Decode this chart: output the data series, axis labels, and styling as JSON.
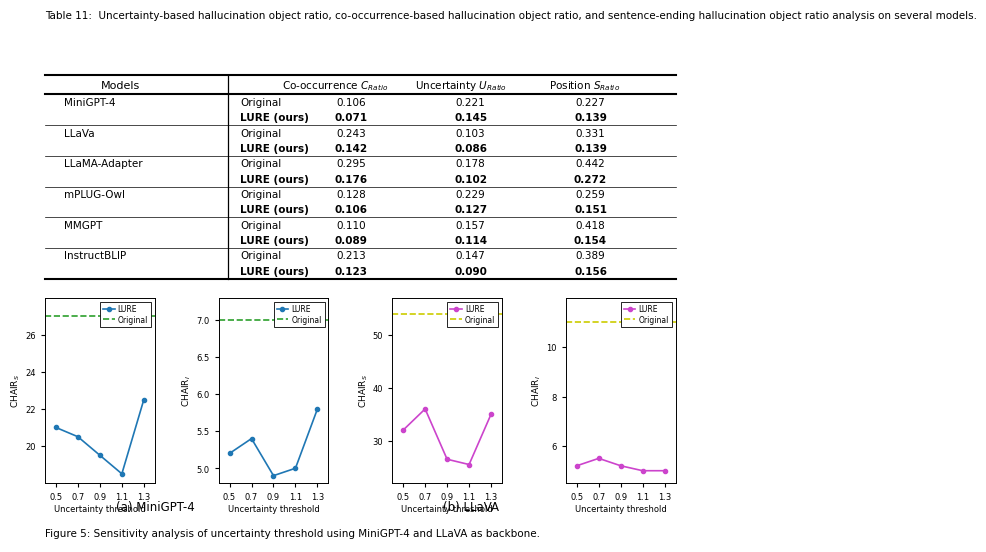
{
  "table_title": "Table 11:  Uncertainty-based hallucination object ratio, co-occurrence-based hallucination object ratio, and sentence-ending hallucination object ratio analysis on several models.",
  "table_rows": [
    [
      "MiniGPT-4",
      "Original",
      "0.106",
      "0.221",
      "0.227"
    ],
    [
      "",
      "LURE (ours)",
      "0.071",
      "0.145",
      "0.139"
    ],
    [
      "LLaVa",
      "Original",
      "0.243",
      "0.103",
      "0.331"
    ],
    [
      "",
      "LURE (ours)",
      "0.142",
      "0.086",
      "0.139"
    ],
    [
      "LLaMA-Adapter",
      "Original",
      "0.295",
      "0.178",
      "0.442"
    ],
    [
      "",
      "LURE (ours)",
      "0.176",
      "0.102",
      "0.272"
    ],
    [
      "mPLUG-Owl",
      "Original",
      "0.128",
      "0.229",
      "0.259"
    ],
    [
      "",
      "LURE (ours)",
      "0.106",
      "0.127",
      "0.151"
    ],
    [
      "MMGPT",
      "Original",
      "0.110",
      "0.157",
      "0.418"
    ],
    [
      "",
      "LURE (ours)",
      "0.089",
      "0.114",
      "0.154"
    ],
    [
      "InstructBLIP",
      "Original",
      "0.213",
      "0.147",
      "0.389"
    ],
    [
      "",
      "LURE (ours)",
      "0.123",
      "0.090",
      "0.156"
    ]
  ],
  "x_vals": [
    0.5,
    0.7,
    0.9,
    1.1,
    1.3
  ],
  "minigpt4_chairs": [
    21.0,
    20.5,
    19.5,
    18.5,
    22.5
  ],
  "minigpt4_chairs_orig": 27.0,
  "minigpt4_chairi": [
    5.2,
    5.4,
    4.9,
    5.0,
    5.8
  ],
  "minigpt4_chairi_orig": 7.0,
  "llava_chairs": [
    32.0,
    36.0,
    26.5,
    25.5,
    35.0
  ],
  "llava_chairs_orig": 54.0,
  "llava_chairi": [
    5.2,
    5.5,
    5.2,
    5.0,
    5.0
  ],
  "llava_chairi_orig": 11.0,
  "lure_color_minigpt": "#1f77b4",
  "orig_color_minigpt": "#2ca02c",
  "lure_color_llava": "#cc44cc",
  "orig_color_llava": "#cccc00",
  "xlabel": "Uncertainty threshold",
  "sub_a_label": "(a) MiniGPT-4",
  "sub_b_label": "(b) LLaVA",
  "fig5_caption": "Figure 5: Sensitivity analysis of uncertainty threshold using MiniGPT-4 and LLaVA as backbone."
}
